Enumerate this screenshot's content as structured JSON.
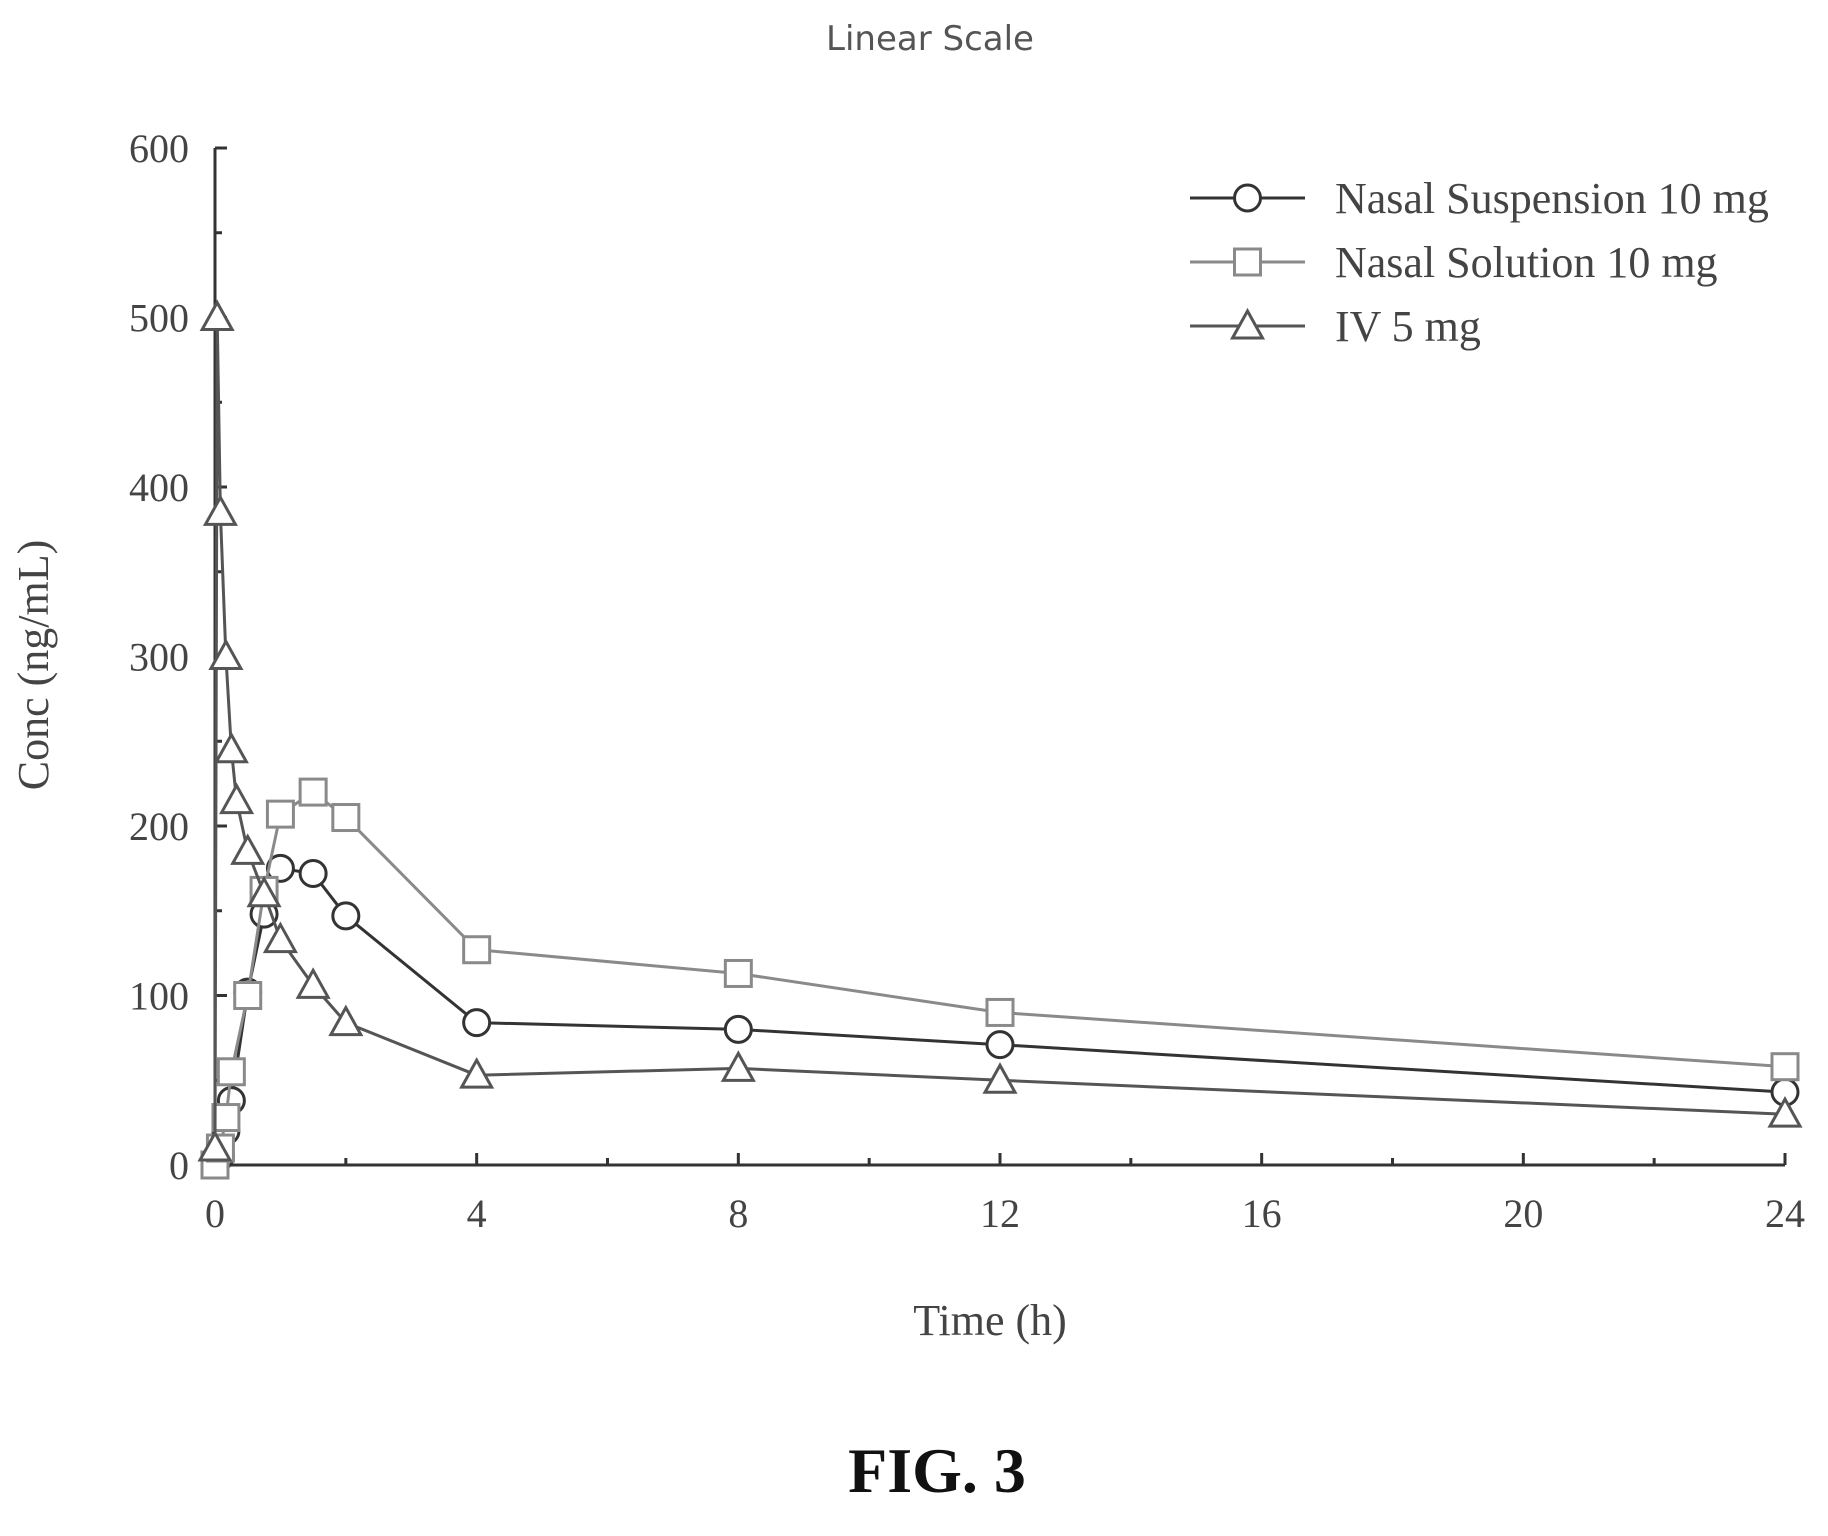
{
  "chart_data": {
    "type": "line",
    "title": "Linear Scale",
    "xlabel": "Time (h)",
    "ylabel": "Conc (ng/mL)",
    "xlim": [
      0,
      24
    ],
    "ylim": [
      0,
      600
    ],
    "xticks": [
      0,
      4,
      8,
      12,
      16,
      20,
      24
    ],
    "yticks": [
      0,
      100,
      200,
      300,
      400,
      500,
      600
    ],
    "grid": false,
    "legend_position": "top-right",
    "series": [
      {
        "name": "Nasal Suspension 10 mg",
        "marker": "circle",
        "color": "#333333",
        "x": [
          0,
          0.083,
          0.167,
          0.25,
          0.5,
          0.75,
          1,
          1.5,
          2,
          4,
          8,
          12,
          24
        ],
        "y": [
          0,
          5,
          20,
          38,
          102,
          148,
          175,
          172,
          147,
          84,
          80,
          71,
          43
        ]
      },
      {
        "name": "Nasal Solution 10 mg",
        "marker": "square",
        "color": "#8a8a8a",
        "x": [
          0,
          0.083,
          0.167,
          0.25,
          0.5,
          0.75,
          1,
          1.5,
          2,
          4,
          8,
          12,
          24
        ],
        "y": [
          0,
          10,
          28,
          55,
          100,
          162,
          207,
          220,
          205,
          127,
          113,
          90,
          58
        ]
      },
      {
        "name": "IV 5 mg",
        "marker": "triangle",
        "color": "#555555",
        "x": [
          0,
          0.033,
          0.083,
          0.167,
          0.25,
          0.33,
          0.5,
          0.75,
          1,
          1.5,
          2,
          4,
          8,
          12,
          24
        ],
        "y": [
          10,
          500,
          385,
          300,
          245,
          215,
          185,
          160,
          133,
          106,
          84,
          53,
          57,
          50,
          30
        ]
      }
    ]
  },
  "figure_label": "FIG. 3"
}
